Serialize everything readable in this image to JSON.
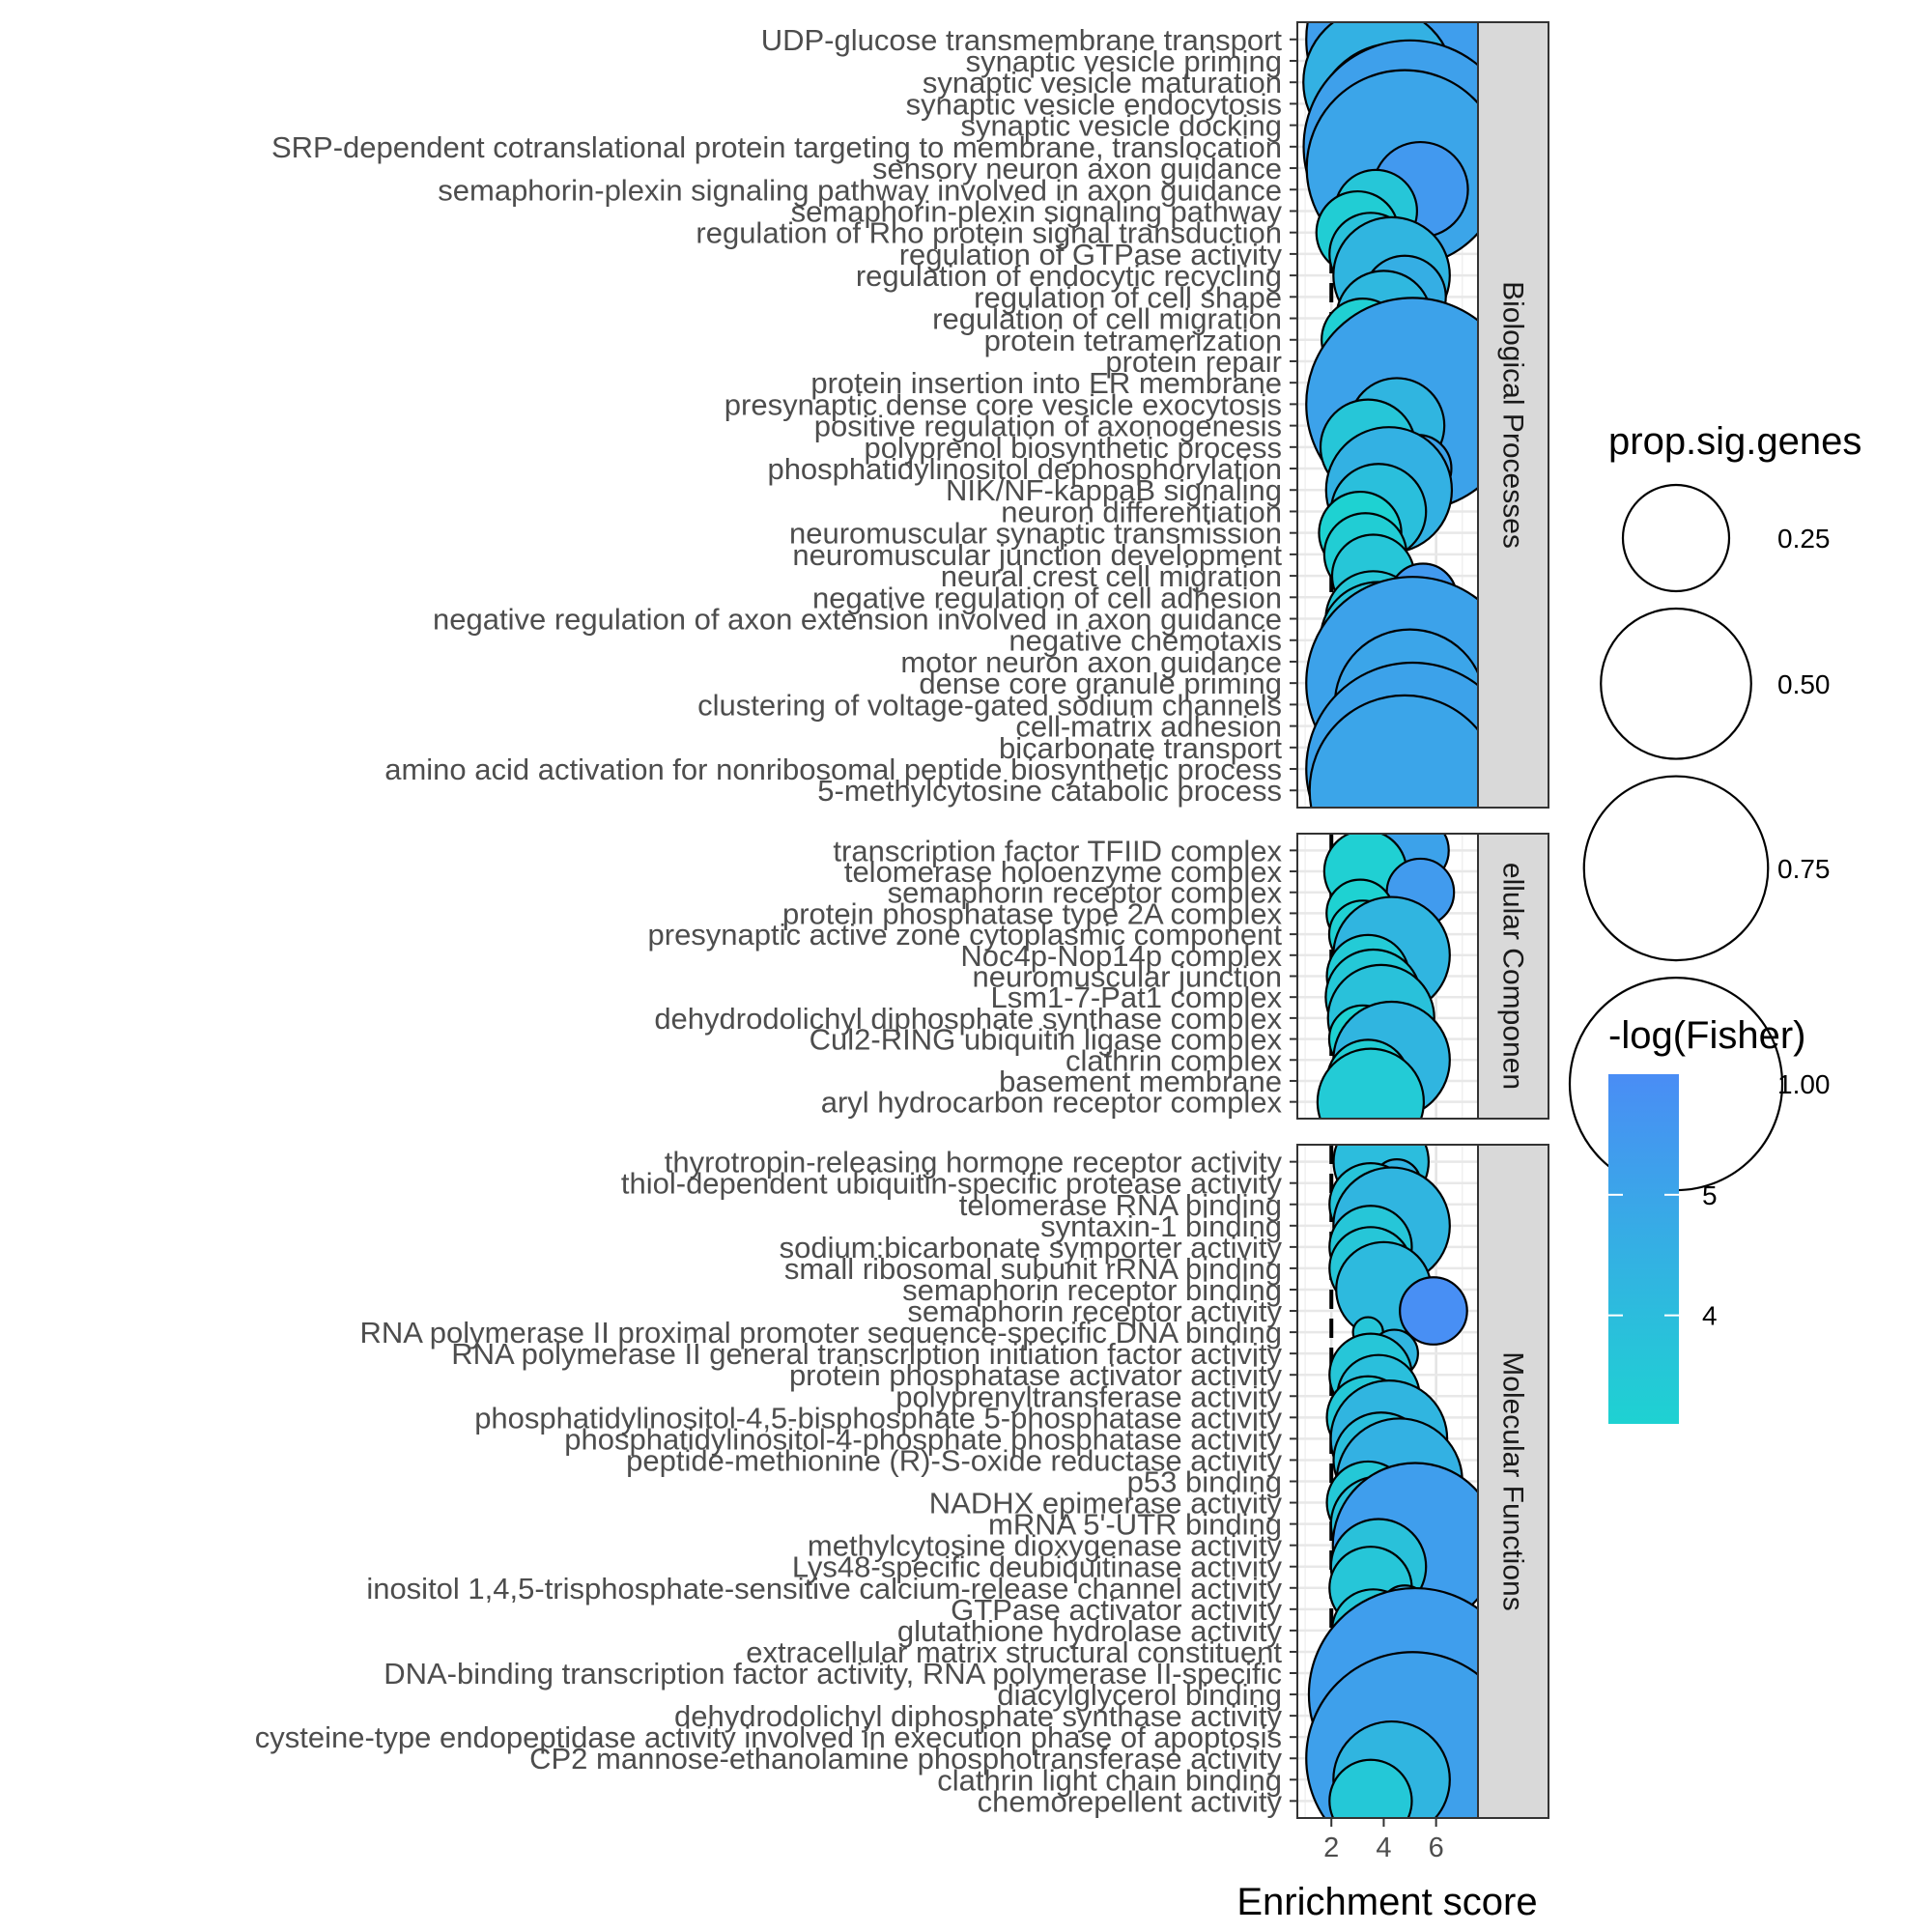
{
  "chart_data": {
    "type": "scatter",
    "xlabel": "Enrichment score",
    "x_ticks": [
      2,
      4,
      6
    ],
    "xlim": [
      0.7,
      7.6
    ],
    "reference_line_x": 2,
    "size_legend": {
      "title": "prop.sig.genes",
      "values": [
        0.25,
        0.5,
        0.75,
        1.0
      ],
      "labels": [
        "0.25",
        "0.50",
        "0.75",
        "1.00"
      ]
    },
    "color_legend": {
      "title": "-log(Fisher)",
      "ticks": [
        4,
        5
      ],
      "tick_labels": [
        "4",
        "5"
      ],
      "range": [
        3.1,
        6.0
      ],
      "low_color": "#1ed2d2",
      "high_color": "#4a8df5"
    },
    "panels": [
      {
        "name": "Biological Processes",
        "points": [
          {
            "term": "UDP-glucose transmembrane transport",
            "x": 5.1,
            "size": 1.0,
            "fisher": 5.3
          },
          {
            "term": "synaptic vesicle priming",
            "x": 3.0,
            "size": 0.15,
            "fisher": 3.5
          },
          {
            "term": "synaptic vesicle maturation",
            "x": 3.8,
            "size": 0.5,
            "fisher": 4.5
          },
          {
            "term": "synaptic vesicle endocytosis",
            "x": 5.3,
            "size": 0.15,
            "fisher": 5.0
          },
          {
            "term": "synaptic vesicle docking",
            "x": 4.5,
            "size": 0.6,
            "fisher": 4.7
          },
          {
            "term": "SRP-dependent cotranslational protein targeting to membrane, translocation",
            "x": 5.0,
            "size": 1.0,
            "fisher": 5.2
          },
          {
            "term": "sensory neuron axon guidance",
            "x": 4.8,
            "size": 0.85,
            "fisher": 5.0
          },
          {
            "term": "semaphorin-plexin signaling pathway involved in axon guidance",
            "x": 5.4,
            "size": 0.2,
            "fisher": 5.5
          },
          {
            "term": "semaphorin-plexin signaling pathway",
            "x": 3.7,
            "size": 0.15,
            "fisher": 3.6
          },
          {
            "term": "regulation of Rho protein signal transduction",
            "x": 3.0,
            "size": 0.15,
            "fisher": 3.3
          },
          {
            "term": "regulation of GTPase activity",
            "x": 3.5,
            "size": 0.15,
            "fisher": 3.8
          },
          {
            "term": "regulation of endocytic recycling",
            "x": 4.3,
            "size": 0.3,
            "fisher": 4.3
          },
          {
            "term": "regulation of cell shape",
            "x": 4.8,
            "size": 0.15,
            "fisher": 4.6
          },
          {
            "term": "regulation of cell migration",
            "x": 4.0,
            "size": 0.2,
            "fisher": 4.2
          },
          {
            "term": "protein tetramerization",
            "x": 3.2,
            "size": 0.15,
            "fisher": 3.2
          },
          {
            "term": "protein repair",
            "x": 3.8,
            "size": 0.2,
            "fisher": 3.9
          },
          {
            "term": "protein insertion into ER membrane",
            "x": 3.4,
            "size": 0.2,
            "fisher": 3.5
          },
          {
            "term": "presynaptic dense core vesicle exocytosis",
            "x": 5.1,
            "size": 1.0,
            "fisher": 5.1
          },
          {
            "term": "positive regulation of axonogenesis",
            "x": 4.5,
            "size": 0.2,
            "fisher": 4.3
          },
          {
            "term": "polyprenol biosynthetic process",
            "x": 3.4,
            "size": 0.2,
            "fisher": 3.6
          },
          {
            "term": "phosphatidylinositol dephosphorylation",
            "x": 5.3,
            "size": 0.1,
            "fisher": 5.1
          },
          {
            "term": "NIK/NF-kappaB signaling",
            "x": 4.2,
            "size": 0.35,
            "fisher": 4.5
          },
          {
            "term": "neuron differentiation",
            "x": 3.8,
            "size": 0.2,
            "fisher": 3.9
          },
          {
            "term": "neuromuscular synaptic transmission",
            "x": 3.1,
            "size": 0.15,
            "fisher": 3.1
          },
          {
            "term": "neuromuscular junction development",
            "x": 3.3,
            "size": 0.15,
            "fisher": 3.3
          },
          {
            "term": "neural crest cell migration",
            "x": 3.6,
            "size": 0.15,
            "fisher": 3.6
          },
          {
            "term": "negative regulation of cell adhesion",
            "x": 5.5,
            "size": 0.1,
            "fisher": 5.5
          },
          {
            "term": "negative regulation of axon extension involved in axon guidance",
            "x": 3.6,
            "size": 0.2,
            "fisher": 3.6
          },
          {
            "term": "negative chemotaxis",
            "x": 3.8,
            "size": 0.3,
            "fisher": 3.8
          },
          {
            "term": "motor neuron axon guidance",
            "x": 3.6,
            "size": 0.15,
            "fisher": 3.7
          },
          {
            "term": "dense core granule priming",
            "x": 5.1,
            "size": 1.0,
            "fisher": 5.1
          },
          {
            "term": "clustering of voltage-gated sodium channels",
            "x": 5.0,
            "size": 0.5,
            "fisher": 5.0
          },
          {
            "term": "cell-matrix adhesion",
            "x": 3.5,
            "size": 0.05,
            "fisher": 3.5
          },
          {
            "term": "bicarbonate transport",
            "x": 3.2,
            "size": 0.15,
            "fisher": 3.3
          },
          {
            "term": "amino acid activation for nonribosomal peptide biosynthetic process",
            "x": 5.1,
            "size": 1.0,
            "fisher": 5.1
          },
          {
            "term": "5-methylcytosine catabolic process",
            "x": 4.8,
            "size": 0.8,
            "fisher": 5.0
          }
        ]
      },
      {
        "name": "Cellular Components",
        "strip_visible_text": "ellular Componen",
        "points": [
          {
            "term": "transcription factor TFIID complex",
            "x": 5.2,
            "size": 0.1,
            "fisher": 5.1
          },
          {
            "term": "telomerase holoenzyme complex",
            "x": 3.3,
            "size": 0.15,
            "fisher": 3.2
          },
          {
            "term": "semaphorin receptor complex",
            "x": 5.4,
            "size": 0.1,
            "fisher": 5.4
          },
          {
            "term": "protein phosphatase type 2A complex",
            "x": 3.1,
            "size": 0.1,
            "fisher": 3.1
          },
          {
            "term": "presynaptic active zone cytoplasmic component",
            "x": 3.2,
            "size": 0.1,
            "fisher": 3.2
          },
          {
            "term": "Noc4p-Nop14p complex",
            "x": 4.3,
            "size": 0.3,
            "fisher": 4.3
          },
          {
            "term": "neuromuscular junction",
            "x": 3.4,
            "size": 0.15,
            "fisher": 3.4
          },
          {
            "term": "Lsm1-7-Pat1 complex",
            "x": 3.6,
            "size": 0.2,
            "fisher": 3.5
          },
          {
            "term": "dehydrodolichyl diphosphate synthase complex",
            "x": 3.9,
            "size": 0.25,
            "fisher": 3.8
          },
          {
            "term": "Cul2-RING ubiquitin ligase complex",
            "x": 3.2,
            "size": 0.1,
            "fisher": 3.1
          },
          {
            "term": "clathrin complex",
            "x": 4.3,
            "size": 0.3,
            "fisher": 4.3
          },
          {
            "term": "basement membrane",
            "x": 3.4,
            "size": 0.15,
            "fisher": 3.3
          },
          {
            "term": "aryl hydrocarbon receptor complex",
            "x": 3.5,
            "size": 0.25,
            "fisher": 3.4
          }
        ]
      },
      {
        "name": "Molecular Functions",
        "points": [
          {
            "term": "thyrotropin-releasing hormone receptor activity",
            "x": 3.9,
            "size": 0.2,
            "fisher": 4.0
          },
          {
            "term": "thiol-dependent ubiquitin-specific protease activity",
            "x": 4.5,
            "size": 0.05,
            "fisher": 4.4
          },
          {
            "term": "telomerase RNA binding",
            "x": 3.5,
            "size": 0.15,
            "fisher": 3.7
          },
          {
            "term": "syntaxin-1 binding",
            "x": 4.3,
            "size": 0.3,
            "fisher": 4.3
          },
          {
            "term": "sodium:bicarbonate symporter activity",
            "x": 3.5,
            "size": 0.15,
            "fisher": 3.6
          },
          {
            "term": "small ribosomal subunit rRNA binding",
            "x": 3.5,
            "size": 0.15,
            "fisher": 3.6
          },
          {
            "term": "semaphorin receptor binding",
            "x": 4.0,
            "size": 0.2,
            "fisher": 4.1
          },
          {
            "term": "semaphorin receptor activity",
            "x": 5.9,
            "size": 0.1,
            "fisher": 5.9
          },
          {
            "term": "RNA polymerase II proximal promoter sequence-specific DNA binding",
            "x": 3.4,
            "size": 0.02,
            "fisher": 3.6
          },
          {
            "term": "RNA polymerase II general transcription initiation factor activity",
            "x": 4.4,
            "size": 0.05,
            "fisher": 4.3
          },
          {
            "term": "protein phosphatase activator activity",
            "x": 3.5,
            "size": 0.15,
            "fisher": 3.6
          },
          {
            "term": "polyprenyltransferase activity",
            "x": 3.8,
            "size": 0.15,
            "fisher": 3.9
          },
          {
            "term": "phosphatidylinositol-4,5-bisphosphate 5-phosphatase activity",
            "x": 3.4,
            "size": 0.15,
            "fisher": 3.5
          },
          {
            "term": "phosphatidylinositol-4-phosphate phosphatase activity",
            "x": 4.2,
            "size": 0.3,
            "fisher": 4.3
          },
          {
            "term": "peptide-methionine (R)-S-oxide reductase activity",
            "x": 3.9,
            "size": 0.2,
            "fisher": 3.9
          },
          {
            "term": "p53 binding",
            "x": 4.6,
            "size": 0.35,
            "fisher": 4.5
          },
          {
            "term": "NADHX epimerase activity",
            "x": 3.4,
            "size": 0.15,
            "fisher": 3.5
          },
          {
            "term": "mRNA 5'-UTR binding",
            "x": 3.8,
            "size": 0.2,
            "fisher": 3.8
          },
          {
            "term": "methylcytosine dioxygenase activity",
            "x": 5.2,
            "size": 0.6,
            "fisher": 5.3
          },
          {
            "term": "Lys48-specific deubiquitinase activity",
            "x": 3.8,
            "size": 0.2,
            "fisher": 3.8
          },
          {
            "term": "inositol 1,4,5-trisphosphate-sensitive calcium-release channel activity",
            "x": 3.5,
            "size": 0.15,
            "fisher": 3.6
          },
          {
            "term": "GTPase activator activity",
            "x": 4.8,
            "size": 0.05,
            "fisher": 4.6
          },
          {
            "term": "glutathione hydrolase activity",
            "x": 3.6,
            "size": 0.15,
            "fisher": 3.6
          },
          {
            "term": "extracellular matrix structural constituent",
            "x": 3.1,
            "size": 0.1,
            "fisher": 3.1
          },
          {
            "term": "DNA-binding transcription factor activity, RNA polymerase II-specific",
            "x": 3.2,
            "size": 0.02,
            "fisher": 3.2
          },
          {
            "term": "diacylglycerol binding",
            "x": 5.2,
            "size": 1.0,
            "fisher": 5.3
          },
          {
            "term": "dehydrodolichyl diphosphate synthase activity",
            "x": 4.0,
            "size": 0.25,
            "fisher": 4.0
          },
          {
            "term": "cysteine-type endopeptidase activity involved in execution phase of apoptosis",
            "x": 3.2,
            "size": 0.1,
            "fisher": 3.2
          },
          {
            "term": "CP2 mannose-ethanolamine phosphotransferase activity",
            "x": 5.1,
            "size": 1.0,
            "fisher": 5.2
          },
          {
            "term": "clathrin light chain binding",
            "x": 4.3,
            "size": 0.3,
            "fisher": 4.3
          },
          {
            "term": "chemorepellent activity",
            "x": 3.5,
            "size": 0.15,
            "fisher": 3.5
          }
        ]
      }
    ]
  }
}
